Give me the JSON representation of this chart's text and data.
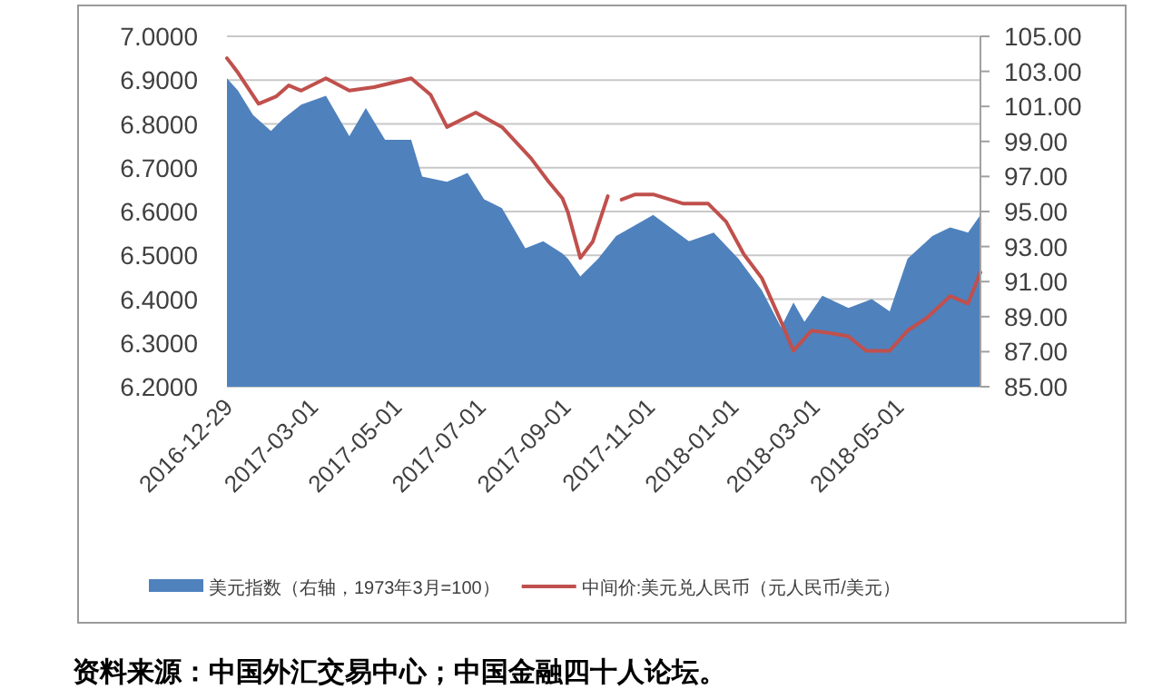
{
  "chart_data": {
    "type": "area",
    "xlim": [
      "2016-12-29",
      "2018-06-30"
    ],
    "xticks": [
      "2016-12-29",
      "2017-03-01",
      "2017-05-01",
      "2017-07-01",
      "2017-09-01",
      "2017-11-01",
      "2018-01-01",
      "2018-03-01",
      "2018-05-01"
    ],
    "ylim": [
      6.2,
      7.0
    ],
    "yticks": [
      {
        "value": 6.2,
        "label": "6.2000"
      },
      {
        "value": 6.3,
        "label": "6.3000"
      },
      {
        "value": 6.4,
        "label": "6.4000"
      },
      {
        "value": 6.5,
        "label": "6.5000"
      },
      {
        "value": 6.6,
        "label": "6.6000"
      },
      {
        "value": 6.7,
        "label": "6.7000"
      },
      {
        "value": 6.8,
        "label": "6.8000"
      },
      {
        "value": 6.9,
        "label": "6.9000"
      },
      {
        "value": 7.0,
        "label": "7.0000"
      }
    ],
    "y2lim": [
      85,
      105
    ],
    "y2ticks": [
      {
        "value": 85,
        "label": "85.00"
      },
      {
        "value": 87,
        "label": "87.00"
      },
      {
        "value": 89,
        "label": "89.00"
      },
      {
        "value": 91,
        "label": "91.00"
      },
      {
        "value": 93,
        "label": "93.00"
      },
      {
        "value": 95,
        "label": "95.00"
      },
      {
        "value": 97,
        "label": "97.00"
      },
      {
        "value": 99,
        "label": "99.00"
      },
      {
        "value": 101,
        "label": "101.00"
      },
      {
        "value": 103,
        "label": "103.00"
      },
      {
        "value": 105,
        "label": "105.00"
      }
    ],
    "grid": "y",
    "legend": "bottom",
    "series": [
      {
        "name": "美元指数（右轴，1973年3月=100）",
        "axis": "y2",
        "color": "#4f81bd",
        "x": [
          "2016-12-29",
          "2017-01-06",
          "2017-01-17",
          "2017-01-30",
          "2017-02-08",
          "2017-02-21",
          "2017-03-11",
          "2017-03-28",
          "2017-04-09",
          "2017-04-23",
          "2017-05-12",
          "2017-05-20",
          "2017-06-07",
          "2017-06-22",
          "2017-07-04",
          "2017-07-17",
          "2017-08-03",
          "2017-08-16",
          "2017-08-30",
          "2017-09-03",
          "2017-09-12",
          "2017-09-25",
          "2017-10-08",
          "2017-11-04",
          "2017-11-30",
          "2017-12-18",
          "2018-01-05",
          "2018-01-22",
          "2018-02-05",
          "2018-02-14",
          "2018-02-22",
          "2018-03-07",
          "2018-03-26",
          "2018-04-12",
          "2018-04-25",
          "2018-05-08",
          "2018-05-26",
          "2018-06-08",
          "2018-06-21",
          "2018-06-30"
        ],
        "values": [
          102.6,
          101.9,
          100.5,
          99.6,
          100.3,
          101.1,
          101.6,
          99.3,
          100.9,
          99.1,
          99.1,
          97.0,
          96.7,
          97.2,
          95.7,
          95.2,
          92.9,
          93.3,
          92.6,
          92.3,
          91.3,
          92.3,
          93.6,
          94.8,
          93.3,
          93.8,
          92.3,
          90.5,
          88.4,
          89.8,
          88.7,
          90.2,
          89.5,
          90.0,
          89.3,
          92.3,
          93.6,
          94.1,
          93.8,
          94.8
        ]
      },
      {
        "name": "中间价:美元兑人民币（元人民币/美元）",
        "type": "line",
        "color": "#c0504d",
        "x": [
          "2016-12-29",
          "2017-01-06",
          "2017-01-21",
          "2017-02-03",
          "2017-02-12",
          "2017-02-21",
          "2017-03-11",
          "2017-03-28",
          "2017-04-15",
          "2017-05-12",
          "2017-05-26",
          "2017-06-07",
          "2017-06-28",
          "2017-07-17",
          "2017-08-07",
          "2017-08-20",
          "2017-08-30",
          "2017-09-03",
          "2017-09-12",
          "2017-09-21",
          "2017-10-02",
          "2017-10-07",
          "2017-10-12",
          "2017-10-22",
          "2017-11-04",
          "2017-11-26",
          "2017-12-14",
          "2017-12-27",
          "2018-01-09",
          "2018-01-22",
          "2018-02-05",
          "2018-02-14",
          "2018-02-27",
          "2018-03-12",
          "2018-03-26",
          "2018-04-08",
          "2018-04-25",
          "2018-05-08",
          "2018-05-22",
          "2018-06-08",
          "2018-06-21",
          "2018-06-30"
        ],
        "values": [
          6.95,
          6.917,
          6.846,
          6.863,
          6.888,
          6.876,
          6.904,
          6.876,
          6.884,
          6.904,
          6.867,
          6.793,
          6.826,
          6.793,
          6.722,
          6.668,
          6.63,
          6.598,
          6.494,
          6.531,
          6.635,
          null,
          6.627,
          6.639,
          6.639,
          6.618,
          6.618,
          6.577,
          6.502,
          6.448,
          6.349,
          6.282,
          6.328,
          6.323,
          6.315,
          6.282,
          6.282,
          6.328,
          6.357,
          6.407,
          6.39,
          6.461
        ]
      }
    ],
    "annotations": [
      "资料来源：中国外汇交易中心；中国金融四十人论坛。"
    ]
  }
}
